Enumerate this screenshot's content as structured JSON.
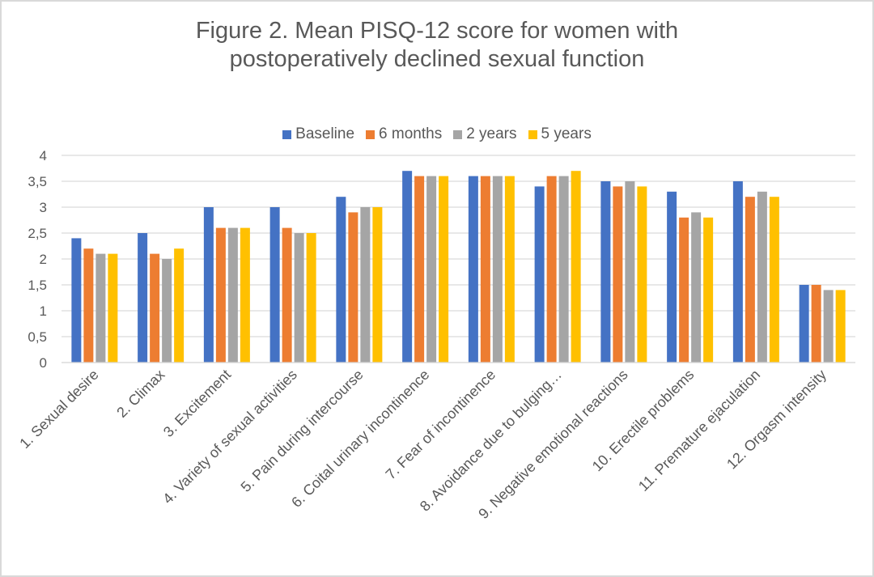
{
  "chart_data": {
    "type": "bar",
    "title": "Figure 2. Mean PISQ-12 score for women with postoperatively declined sexual function",
    "title_lines": [
      "Figure 2. Mean PISQ-12 score for women with",
      "postoperatively declined sexual function"
    ],
    "xlabel": "",
    "ylabel": "",
    "ylim": [
      0,
      4
    ],
    "yticks": [
      0,
      0.5,
      1,
      1.5,
      2,
      2.5,
      3,
      3.5,
      4
    ],
    "ytick_labels": [
      "0",
      "0,5",
      "1",
      "1,5",
      "2",
      "2,5",
      "3",
      "3,5",
      "4"
    ],
    "grid": true,
    "legend_position": "top-center",
    "categories": [
      "1. Sexual desire",
      "2. Climax",
      "3. Excitement",
      "4. Variety of sexual activities",
      "5. Pain during intercourse",
      "6. Coital urinary incontinence",
      "7. Fear of incontinence",
      "8. Avoidance due to bulging…",
      "9. Negative emotional reactions",
      "10. Erectile problems",
      "11. Premature ejaculation",
      "12. Orgasm intensity"
    ],
    "series": [
      {
        "name": "Baseline",
        "color": "#4472c4",
        "values": [
          2.4,
          2.5,
          3.0,
          3.0,
          3.2,
          3.7,
          3.6,
          3.4,
          3.5,
          3.3,
          3.5,
          1.5
        ]
      },
      {
        "name": "6 months",
        "color": "#ed7d31",
        "values": [
          2.2,
          2.1,
          2.6,
          2.6,
          2.9,
          3.6,
          3.6,
          3.6,
          3.4,
          2.8,
          3.2,
          1.5
        ]
      },
      {
        "name": "2 years",
        "color": "#a5a5a5",
        "values": [
          2.1,
          2.0,
          2.6,
          2.5,
          3.0,
          3.6,
          3.6,
          3.6,
          3.5,
          2.9,
          3.3,
          1.4
        ]
      },
      {
        "name": "5 years",
        "color": "#ffc000",
        "values": [
          2.1,
          2.2,
          2.6,
          2.5,
          3.0,
          3.6,
          3.6,
          3.7,
          3.4,
          2.8,
          3.2,
          1.4
        ]
      }
    ]
  }
}
